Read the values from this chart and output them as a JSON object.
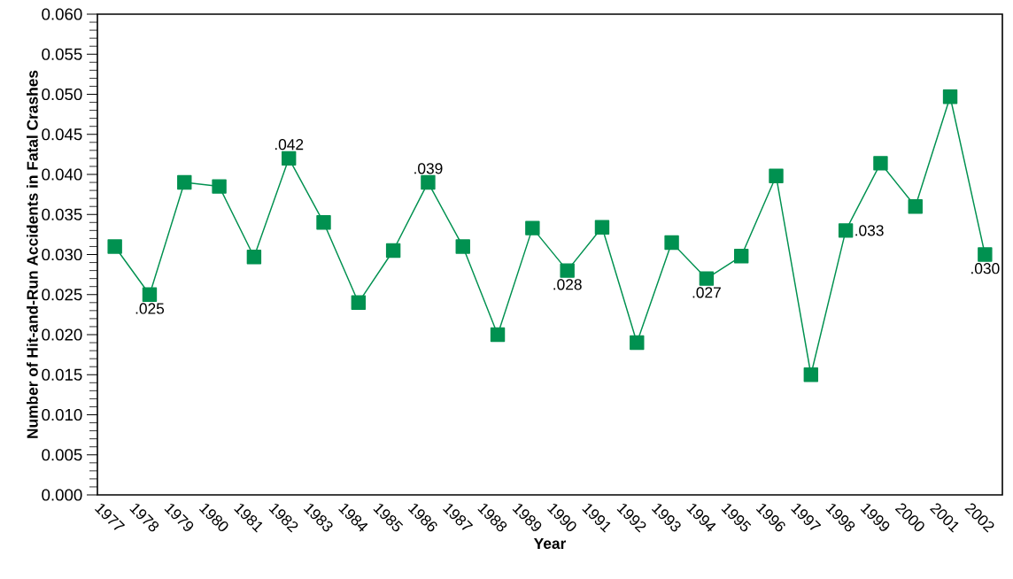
{
  "chart_data": {
    "type": "line",
    "xlabel": "Year",
    "ylabel": "Number of Hit-and-Run Accidents in Fatal Crashes",
    "categories": [
      "1977",
      "1978",
      "1979",
      "1980",
      "1981",
      "1982",
      "1983",
      "1984",
      "1985",
      "1986",
      "1987",
      "1988",
      "1989",
      "1990",
      "1991",
      "1992",
      "1993",
      "1994",
      "1995",
      "1996",
      "1997",
      "1998",
      "1999",
      "2000",
      "2001",
      "2002"
    ],
    "series": [
      {
        "color": "#009150",
        "values": [
          0.031,
          0.025,
          0.039,
          0.0385,
          0.0297,
          0.042,
          0.034,
          0.024,
          0.0305,
          0.039,
          0.031,
          0.02,
          0.0333,
          0.028,
          0.0334,
          0.019,
          0.0315,
          0.027,
          0.0298,
          0.0398,
          0.015,
          0.033,
          0.0414,
          0.036,
          0.0497,
          0.03
        ],
        "value_labels": [
          null,
          ".025",
          null,
          null,
          null,
          ".042",
          null,
          null,
          null,
          ".039",
          null,
          null,
          null,
          ".028",
          null,
          null,
          null,
          ".027",
          null,
          null,
          null,
          ".033",
          null,
          null,
          null,
          ".030"
        ]
      }
    ],
    "ylim": [
      0,
      0.06
    ],
    "yticks": [
      {
        "value": 0,
        "label": "0.000"
      },
      {
        "value": 0.005,
        "label": "0.005"
      },
      {
        "value": 0.01,
        "label": "0.010"
      },
      {
        "value": 0.015,
        "label": "0.015"
      },
      {
        "value": 0.02,
        "label": "0.020"
      },
      {
        "value": 0.025,
        "label": "0.025"
      },
      {
        "value": 0.03,
        "label": "0.030"
      },
      {
        "value": 0.035,
        "label": "0.035"
      },
      {
        "value": 0.04,
        "label": "0.040"
      },
      {
        "value": 0.045,
        "label": "0.045"
      },
      {
        "value": 0.05,
        "label": "0.050"
      },
      {
        "value": 0.055,
        "label": "0.055"
      },
      {
        "value": 0.06,
        "label": "0.060"
      }
    ],
    "marker": "square",
    "line_style": "solid"
  }
}
